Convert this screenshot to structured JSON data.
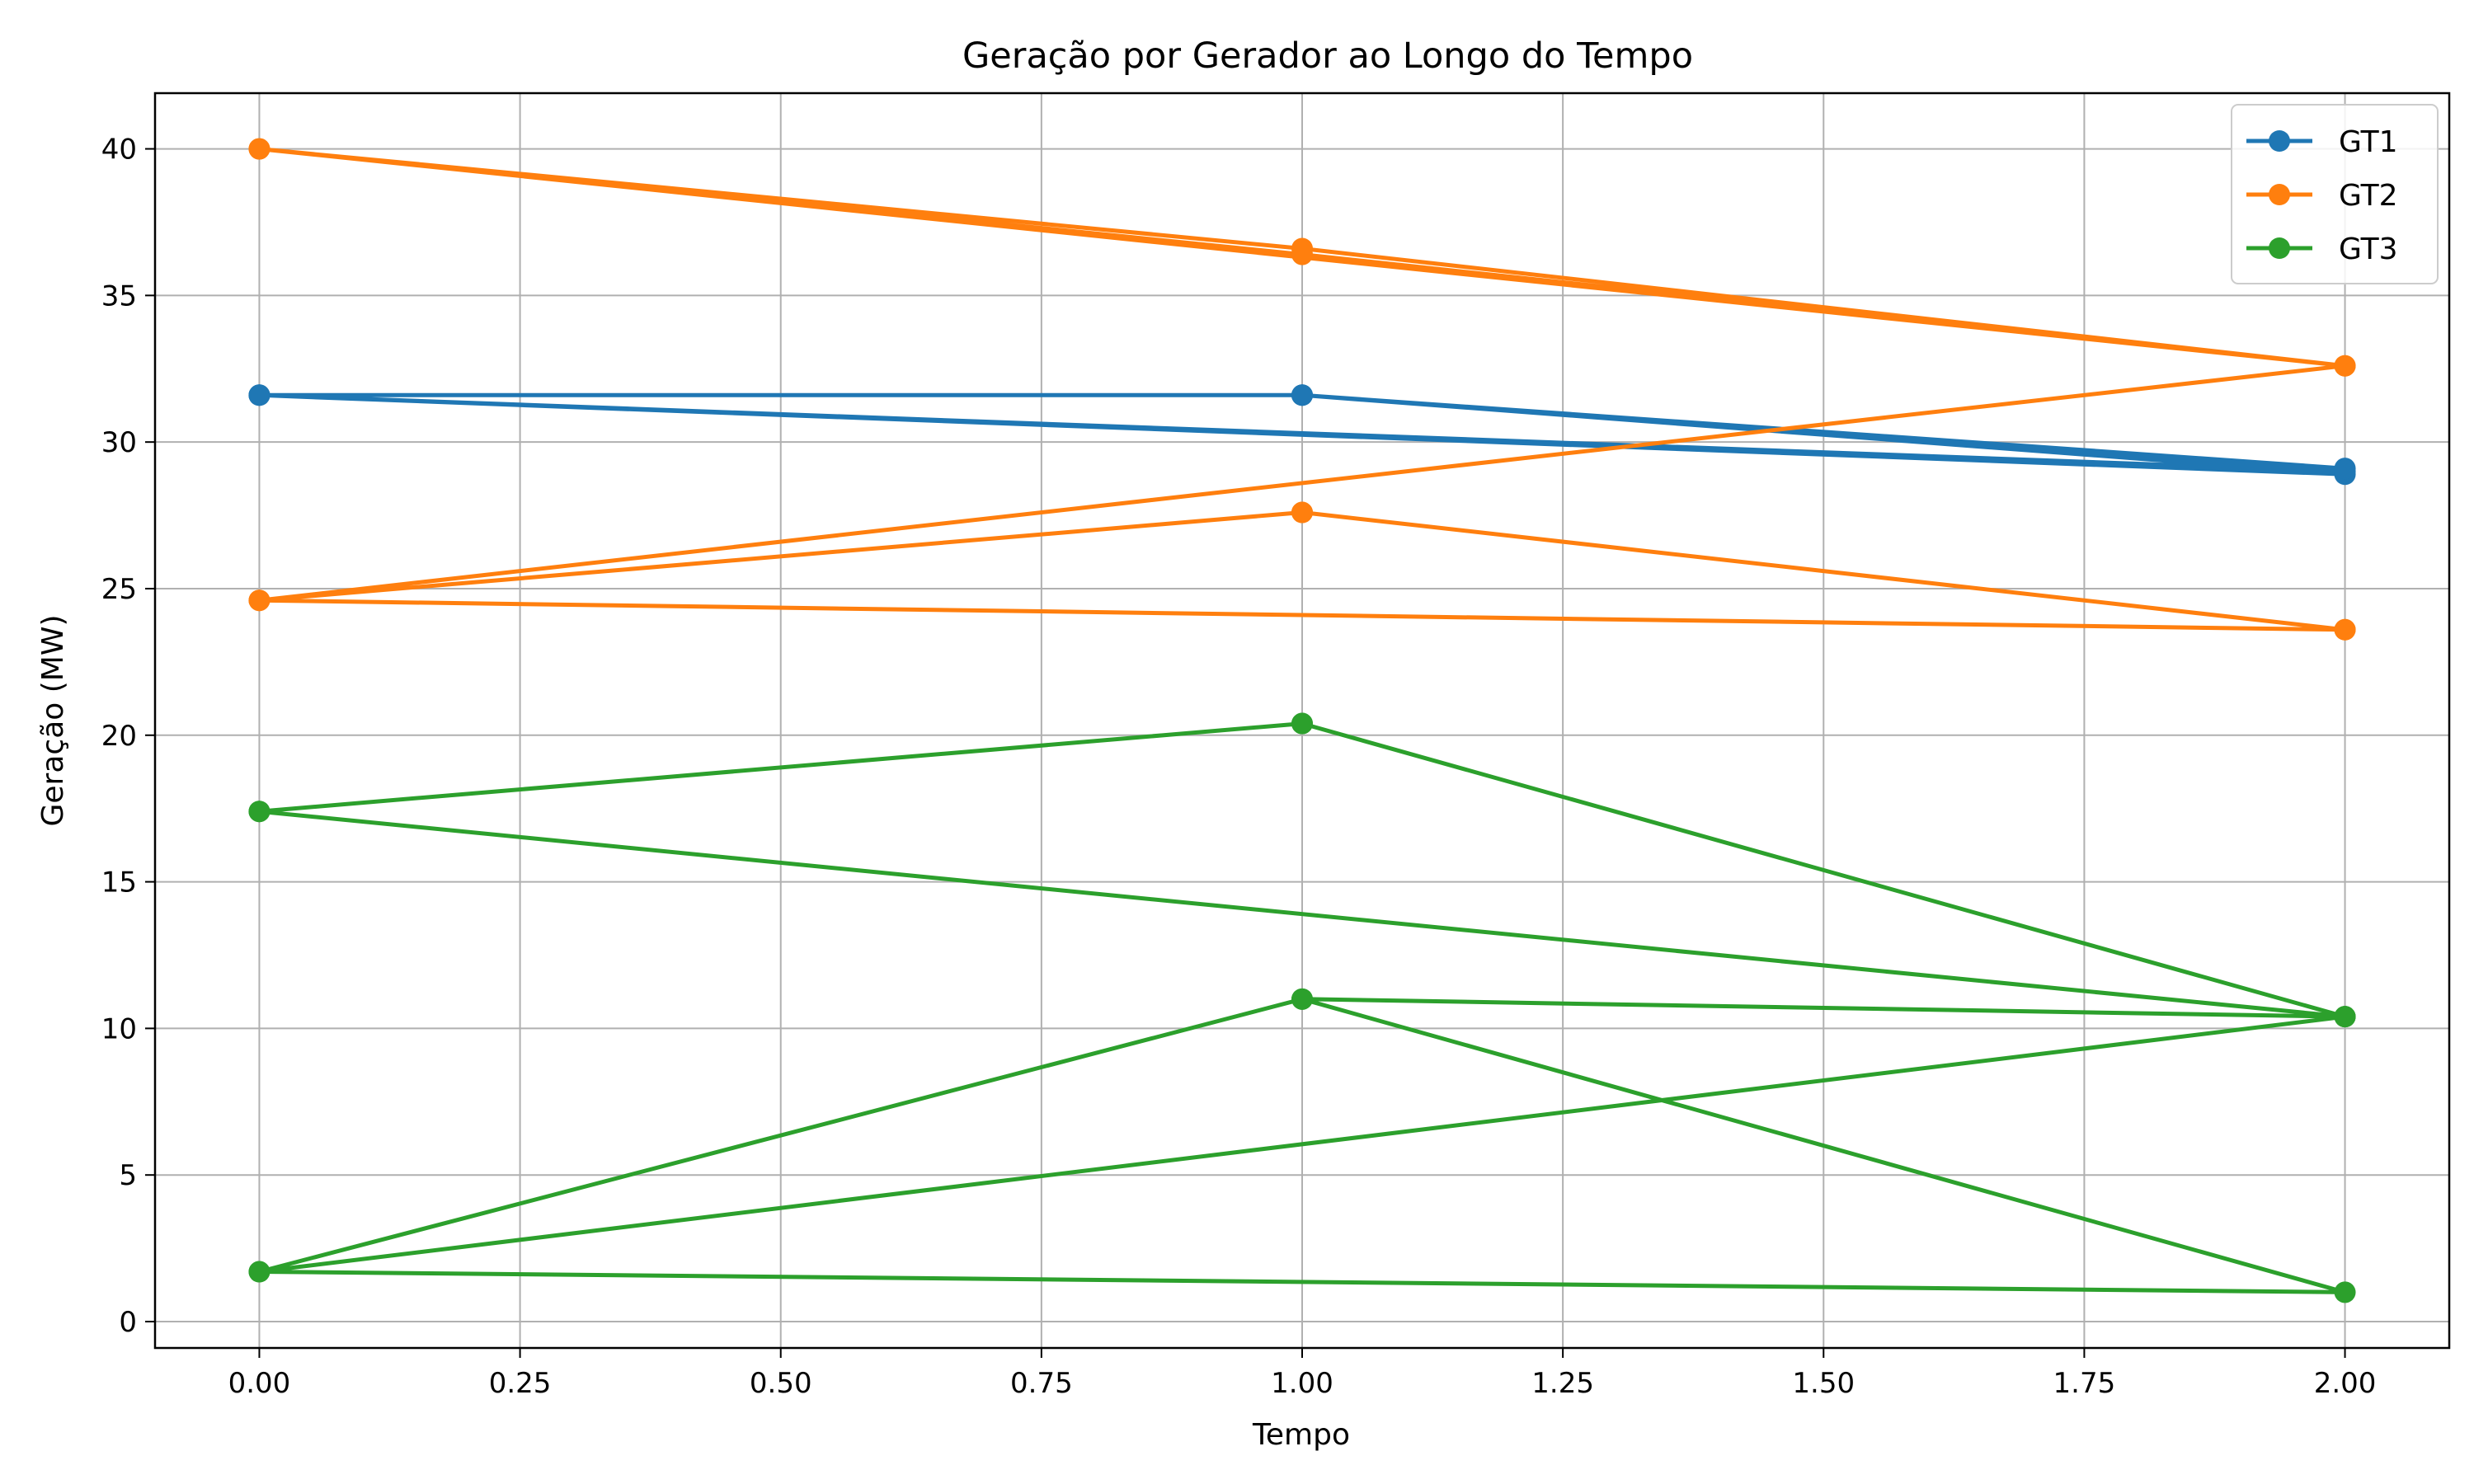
{
  "chart_data": {
    "type": "line",
    "title": "Geração por Gerador ao Longo do Tempo",
    "xlabel": "Tempo",
    "ylabel": "Geração (MW)",
    "xlim": [
      -0.1,
      2.1
    ],
    "ylim": [
      -0.9,
      41.9
    ],
    "xticks": [
      0.0,
      0.25,
      0.5,
      0.75,
      1.0,
      1.25,
      1.5,
      1.75,
      2.0
    ],
    "xtick_labels": [
      "0.00",
      "0.25",
      "0.50",
      "0.75",
      "1.00",
      "1.25",
      "1.50",
      "1.75",
      "2.00"
    ],
    "yticks": [
      0,
      5,
      10,
      15,
      20,
      25,
      30,
      35,
      40
    ],
    "ytick_labels": [
      "0",
      "5",
      "10",
      "15",
      "20",
      "25",
      "30",
      "35",
      "40"
    ],
    "grid": true,
    "legend": "top-right",
    "series": [
      {
        "name": "GT1",
        "color": "#1f77b4",
        "x": [
          0,
          1,
          2,
          0,
          1,
          2,
          0,
          1,
          2
        ],
        "values": [
          31.6,
          31.6,
          29.0,
          31.6,
          31.6,
          28.9,
          31.6,
          31.6,
          29.1
        ]
      },
      {
        "name": "GT2",
        "color": "#ff7f0e",
        "x": [
          0,
          1,
          2,
          0,
          1,
          2,
          0,
          1,
          2,
          0,
          1,
          2
        ],
        "values": [
          40.0,
          36.6,
          32.6,
          40.0,
          36.4,
          32.6,
          24.6,
          27.6,
          23.6,
          24.6,
          27.6,
          23.6
        ]
      },
      {
        "name": "GT3",
        "color": "#2ca02c",
        "x": [
          0,
          1,
          2,
          0,
          1,
          2,
          0,
          1,
          2,
          0,
          1,
          2
        ],
        "values": [
          17.4,
          20.4,
          10.4,
          17.4,
          20.4,
          10.4,
          1.7,
          11.0,
          1.0,
          1.7,
          11.0,
          10.4
        ]
      }
    ]
  }
}
